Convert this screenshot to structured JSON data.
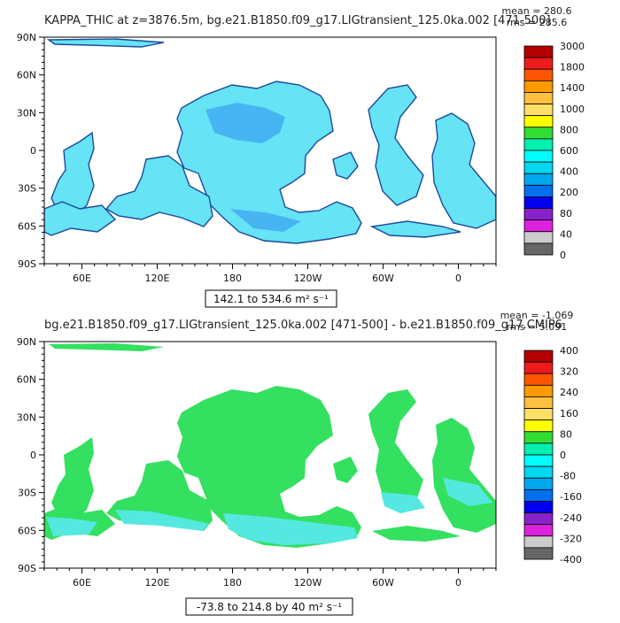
{
  "panels": [
    {
      "title": "KAPPA_THIC at z=3876.5m, bg.e21.B1850.f09_g17.LIGtransient_125.0ka.002 [471-500]",
      "mean_text": "mean = 280.6",
      "rms_text": "rms = 285.6",
      "range_text": "142.1 to 534.6 m² s⁻¹"
    },
    {
      "title": "bg.e21.B1850.f09_g17.LIGtransient_125.0ka.002 [471-500] - b.e21.B1850.f09_g17.CMIP6",
      "mean_text": "mean = -1.069",
      "rms_text": "rms = 5.091",
      "range_text": "-73.8 to 214.8 by 40 m² s⁻¹"
    }
  ],
  "chart_data": [
    {
      "type": "heatmap",
      "projection": "cylindrical-equidistant",
      "variable": "KAPPA_THIC",
      "units": "m² s⁻¹",
      "mean": 280.6,
      "rms": 285.6,
      "min": 142.1,
      "max": 534.6,
      "lon_range": [
        30,
        390
      ],
      "lat_range": [
        -90,
        90
      ],
      "x_ticks": [
        "60E",
        "120E",
        "180",
        "120W",
        "60W",
        "0"
      ],
      "x_tick_lons": [
        60,
        120,
        180,
        240,
        300,
        360
      ],
      "y_ticks": [
        "90N",
        "60N",
        "30N",
        "0",
        "30S",
        "60S",
        "90S"
      ],
      "y_tick_lats": [
        90,
        60,
        30,
        0,
        -30,
        -60,
        -90
      ],
      "colorbar_labels": [
        "3000",
        "1800",
        "1400",
        "1000",
        "800",
        "600",
        "400",
        "200",
        "80",
        "40",
        "0"
      ],
      "colorbar_colors": [
        "#b40000",
        "#ee1b1b",
        "#ff5500",
        "#ff9900",
        "#ffc040",
        "#ffe066",
        "#ffff00",
        "#33dd33",
        "#00f0b0",
        "#00ffff",
        "#00d8f0",
        "#00a8f0",
        "#0070ee",
        "#0000ee",
        "#8822cc",
        "#dd22dd",
        "#cccccc",
        "#666666"
      ],
      "dominant_levels": [
        "200-400",
        "400-600"
      ]
    },
    {
      "type": "heatmap",
      "projection": "cylindrical-equidistant",
      "variable": "KAPPA_THIC difference",
      "units": "m² s⁻¹",
      "mean": -1.069,
      "rms": 5.091,
      "min": -73.8,
      "max": 214.8,
      "contour_interval": 40,
      "lon_range": [
        30,
        390
      ],
      "lat_range": [
        -90,
        90
      ],
      "x_ticks": [
        "60E",
        "120E",
        "180",
        "120W",
        "60W",
        "0"
      ],
      "x_tick_lons": [
        60,
        120,
        180,
        240,
        300,
        360
      ],
      "y_ticks": [
        "90N",
        "60N",
        "30N",
        "0",
        "30S",
        "60S",
        "90S"
      ],
      "y_tick_lats": [
        90,
        60,
        30,
        0,
        -30,
        -60,
        -90
      ],
      "colorbar_labels": [
        "400",
        "320",
        "240",
        "160",
        "80",
        "0",
        "-80",
        "-160",
        "-240",
        "-320",
        "-400"
      ],
      "colorbar_colors": [
        "#b40000",
        "#ee1b1b",
        "#ff5500",
        "#ff9900",
        "#ffc040",
        "#ffe066",
        "#ffff00",
        "#33dd33",
        "#00f0b0",
        "#00ffff",
        "#00d8f0",
        "#00a8f0",
        "#0070ee",
        "#0000ee",
        "#8822cc",
        "#dd22dd",
        "#cccccc",
        "#666666"
      ],
      "dominant_levels": [
        "0-40",
        "-40-0"
      ]
    }
  ]
}
